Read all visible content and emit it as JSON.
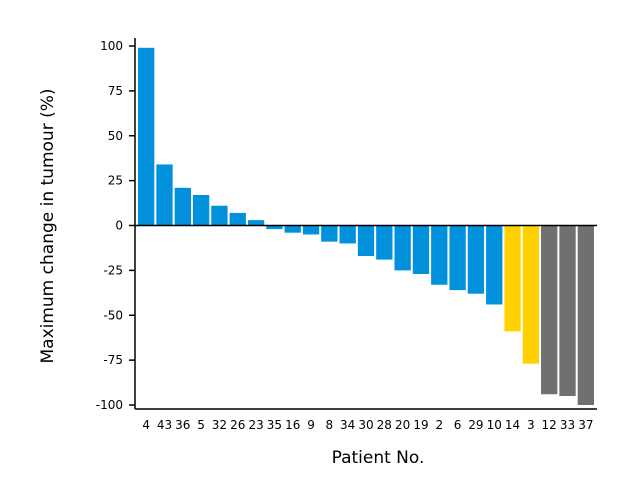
{
  "chart_data": {
    "type": "bar",
    "title": "",
    "xlabel": "Patient No.",
    "ylabel": "Maximum change in tumour (%)",
    "ylim": [
      -100,
      100
    ],
    "yticks": [
      100,
      75,
      50,
      25,
      0,
      -25,
      -50,
      -75,
      -100
    ],
    "grid": false,
    "categories": [
      "4",
      "43",
      "36",
      "5",
      "32",
      "26",
      "23",
      "35",
      "16",
      "9",
      "8",
      "34",
      "30",
      "28",
      "20",
      "19",
      "2",
      "6",
      "29",
      "10",
      "14",
      "3",
      "12",
      "33",
      "37"
    ],
    "values": [
      99,
      34,
      21,
      17,
      11,
      7,
      3,
      -2,
      -4,
      -5,
      -9,
      -10,
      -17,
      -19,
      -25,
      -27,
      -33,
      -36,
      -38,
      -44,
      -59,
      -77,
      -94,
      -95,
      -100
    ],
    "colors": [
      "#0090dc",
      "#0090dc",
      "#0090dc",
      "#0090dc",
      "#0090dc",
      "#0090dc",
      "#0090dc",
      "#0090dc",
      "#0090dc",
      "#0090dc",
      "#0090dc",
      "#0090dc",
      "#0090dc",
      "#0090dc",
      "#0090dc",
      "#0090dc",
      "#0090dc",
      "#0090dc",
      "#0090dc",
      "#0090dc",
      "#ffd100",
      "#ffd100",
      "#707070",
      "#707070",
      "#707070"
    ]
  }
}
